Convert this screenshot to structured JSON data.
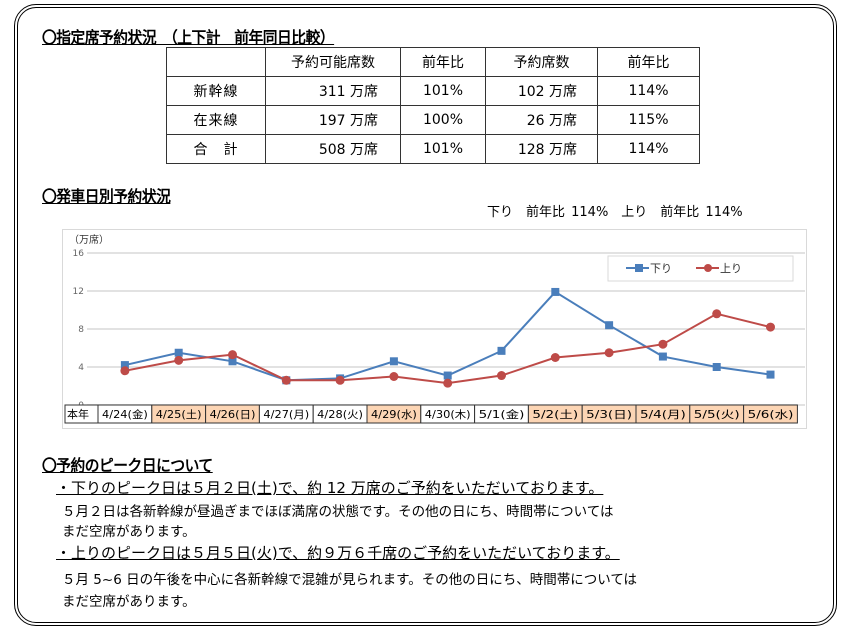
{
  "section1": {
    "title": "〇指定席予約状況　（上下計　前年同日比較）",
    "table": {
      "headers": [
        "",
        "予約可能席数",
        "前年比",
        "予約席数",
        "前年比"
      ],
      "rows": [
        [
          "新幹線",
          "311 万席",
          "101%",
          "102 万席",
          "114%"
        ],
        [
          "在来線",
          "197 万席",
          "100%",
          "26 万席",
          "115%"
        ],
        [
          "合　計",
          "508 万席",
          "101%",
          "128 万席",
          "114%"
        ]
      ]
    }
  },
  "section2": {
    "title": "〇発車日別予約状況",
    "ratio_text": "下り　前年比 114%　上り　前年比 114%"
  },
  "chart_data": {
    "type": "line",
    "ylabel": "（万席）",
    "ylim": [
      0,
      16
    ],
    "yticks": [
      "0",
      "4",
      "8",
      "12",
      "16"
    ],
    "grid": true,
    "legend_placement": "top-right",
    "row_label": "本年",
    "categories": [
      "4/24(金)",
      "4/25(土)",
      "4/26(日)",
      "4/27(月)",
      "4/28(火)",
      "4/29(水)",
      "4/30(木)",
      "5/1(金)",
      "5/2(土)",
      "5/3(日)",
      "5/4(月)",
      "5/5(火)",
      "5/6(水)"
    ],
    "holiday_categories": [
      "4/25(土)",
      "4/26(日)",
      "4/29(水)",
      "5/2(土)",
      "5/3(日)",
      "5/4(月)",
      "5/5(火)",
      "5/6(水)"
    ],
    "series": [
      {
        "name": "下り",
        "color": "#4a7ebb",
        "marker": "square",
        "values": [
          4.2,
          5.5,
          4.6,
          2.6,
          2.8,
          4.6,
          3.1,
          5.7,
          11.9,
          8.4,
          5.1,
          4.0,
          3.2
        ]
      },
      {
        "name": "上り",
        "color": "#be4b48",
        "marker": "circle",
        "values": [
          3.6,
          4.7,
          5.3,
          2.6,
          2.6,
          3.0,
          2.3,
          3.1,
          5.0,
          5.5,
          6.4,
          9.6,
          8.2
        ]
      }
    ],
    "holiday_color": "#fcd5b4"
  },
  "section3": {
    "title": "〇予約のピーク日について",
    "item1_head": "・下りのピーク日は５月２日(土)で、約 12 万席のご予約をいただいております。",
    "item1_body1": "５月２日は各新幹線が昼過ぎまでほぼ満席の状態です。その他の日にち、時間帯については",
    "item1_body2": "まだ空席があります。",
    "item2_head": "・上りのピーク日は５月５日(火)で、約９万６千席のご予約をいただいております。",
    "item2_body1": "５月 5~6 日の午後を中心に各新幹線で混雑が見られます。その他の日にち、時間帯については",
    "item2_body2": "まだ空席があります。"
  }
}
